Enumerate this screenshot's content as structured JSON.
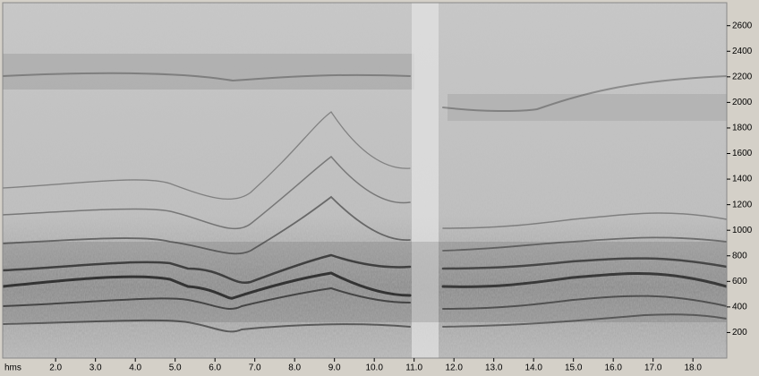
{
  "chart_data": {
    "type": "spectrogram",
    "x_label": "hms",
    "xlim": [
      0.67,
      18.85
    ],
    "xticks": [
      {
        "value": 2,
        "label": "2.0"
      },
      {
        "value": 3,
        "label": "3.0"
      },
      {
        "value": 4,
        "label": "4.0"
      },
      {
        "value": 5,
        "label": "5.0"
      },
      {
        "value": 6,
        "label": "6.0"
      },
      {
        "value": 7,
        "label": "7.0"
      },
      {
        "value": 8,
        "label": "8.0"
      },
      {
        "value": 9,
        "label": "9.0"
      },
      {
        "value": 10,
        "label": "10.0"
      },
      {
        "value": 11,
        "label": "11.0"
      },
      {
        "value": 12,
        "label": "12.0"
      },
      {
        "value": 13,
        "label": "13.0"
      },
      {
        "value": 14,
        "label": "14.0"
      },
      {
        "value": 15,
        "label": "15.0"
      },
      {
        "value": 16,
        "label": "16.0"
      },
      {
        "value": 17,
        "label": "17.0"
      },
      {
        "value": 18,
        "label": "18.0"
      }
    ],
    "ylim": [
      0,
      2780
    ],
    "yticks": [
      200,
      400,
      600,
      800,
      1000,
      1200,
      1400,
      1600,
      1800,
      2000,
      2200,
      2400,
      2600
    ]
  }
}
